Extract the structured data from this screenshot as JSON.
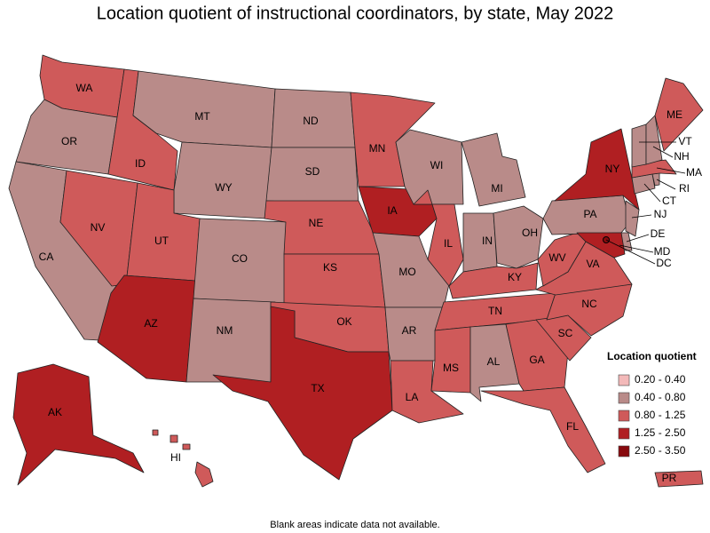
{
  "title": "Location quotient of instructional coordinators, by state, May 2022",
  "states": [
    {
      "label": "WA",
      "bin": 2
    },
    {
      "label": "OR",
      "bin": 1
    },
    {
      "label": "CA",
      "bin": 1
    },
    {
      "label": "NV",
      "bin": 2
    },
    {
      "label": "ID",
      "bin": 2
    },
    {
      "label": "MT",
      "bin": 1
    },
    {
      "label": "WY",
      "bin": 1
    },
    {
      "label": "UT",
      "bin": 2
    },
    {
      "label": "AZ",
      "bin": 3
    },
    {
      "label": "CO",
      "bin": 1
    },
    {
      "label": "NM",
      "bin": 1
    },
    {
      "label": "ND",
      "bin": 1
    },
    {
      "label": "SD",
      "bin": 1
    },
    {
      "label": "NE",
      "bin": 2
    },
    {
      "label": "KS",
      "bin": 2
    },
    {
      "label": "OK",
      "bin": 2
    },
    {
      "label": "TX",
      "bin": 3
    },
    {
      "label": "MN",
      "bin": 2
    },
    {
      "label": "IA",
      "bin": 3
    },
    {
      "label": "MO",
      "bin": 1
    },
    {
      "label": "AR",
      "bin": 1
    },
    {
      "label": "LA",
      "bin": 2
    },
    {
      "label": "WI",
      "bin": 1
    },
    {
      "label": "IL",
      "bin": 2
    },
    {
      "label": "MI",
      "bin": 1
    },
    {
      "label": "IN",
      "bin": 1
    },
    {
      "label": "OH",
      "bin": 1
    },
    {
      "label": "KY",
      "bin": 2
    },
    {
      "label": "TN",
      "bin": 2
    },
    {
      "label": "MS",
      "bin": 2
    },
    {
      "label": "AL",
      "bin": 1
    },
    {
      "label": "GA",
      "bin": 2
    },
    {
      "label": "FL",
      "bin": 2
    },
    {
      "label": "SC",
      "bin": 2
    },
    {
      "label": "NC",
      "bin": 2
    },
    {
      "label": "VA",
      "bin": 2
    },
    {
      "label": "WV",
      "bin": 2
    },
    {
      "label": "PA",
      "bin": 1
    },
    {
      "label": "NY",
      "bin": 3
    },
    {
      "label": "NJ",
      "bin": 1
    },
    {
      "label": "DE",
      "bin": 1
    },
    {
      "label": "MD",
      "bin": 3
    },
    {
      "label": "CT",
      "bin": 1
    },
    {
      "label": "RI",
      "bin": 1
    },
    {
      "label": "MA",
      "bin": 2
    },
    {
      "label": "VT",
      "bin": 1
    },
    {
      "label": "NH",
      "bin": 1
    },
    {
      "label": "ME",
      "bin": 2
    },
    {
      "label": "AK",
      "bin": 3
    },
    {
      "label": "HI",
      "bin": 2
    },
    {
      "label": "PR",
      "bin": 2
    },
    {
      "label": "DC",
      "bin": 4
    }
  ],
  "legend": {
    "title": "Location quotient",
    "bins": [
      {
        "label": "0.20 - 0.40",
        "color": "#f3b9b9"
      },
      {
        "label": "0.40 - 0.80",
        "color": "#b98b89"
      },
      {
        "label": "0.80 - 1.25",
        "color": "#cf5a5a"
      },
      {
        "label": "1.25 - 2.50",
        "color": "#b01f22"
      },
      {
        "label": "2.50 - 3.50",
        "color": "#880a0e"
      }
    ]
  },
  "footnote": "Blank areas indicate data not available."
}
